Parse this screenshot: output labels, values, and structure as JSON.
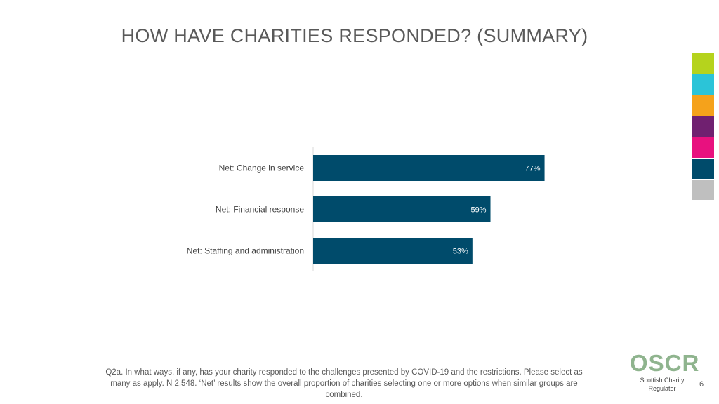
{
  "slide": {
    "title": "HOW HAVE CHARITIES RESPONDED? (SUMMARY)",
    "footnote": "Q2a. In what ways, if any, has your charity responded to the challenges presented by COVID-19 and the restrictions. Please select as many as apply. N 2,548. ‘Net’ results show the overall proportion of charities selecting one or more options when similar groups are combined.",
    "page_number": "6"
  },
  "logo": {
    "mark": "OSCR",
    "tagline": "Scottish Charity Regulator"
  },
  "colors": {
    "bar": "#004b6b",
    "swatches": [
      "#b5d31d",
      "#2bc4d8",
      "#f5a21b",
      "#702070",
      "#e8117f",
      "#004b6b",
      "#bfbfbf"
    ]
  },
  "chart_data": {
    "type": "bar",
    "orientation": "horizontal",
    "categories": [
      "Net: Change in service",
      "Net: Financial response",
      "Net: Staffing and administration"
    ],
    "values": [
      77,
      59,
      53
    ],
    "value_labels": [
      "77%",
      "59%",
      "53%"
    ],
    "xlim": [
      0,
      100
    ],
    "grid": false
  }
}
